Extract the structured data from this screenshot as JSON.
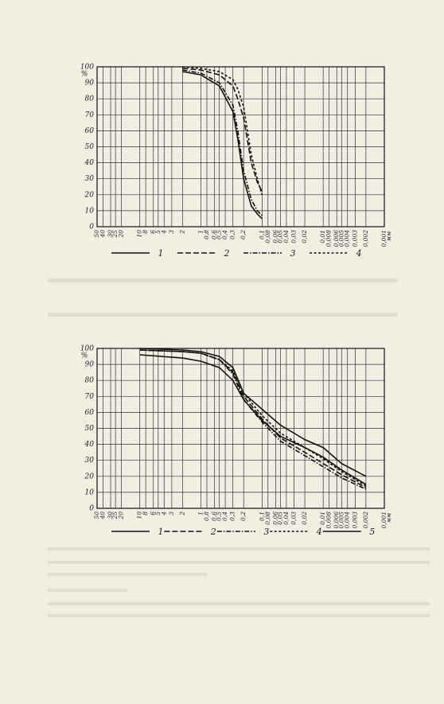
{
  "chart_data": [
    {
      "type": "line",
      "x_unit": "мм",
      "y_unit": "%",
      "xlim": [
        50,
        0.001
      ],
      "ylim": [
        0,
        100
      ],
      "log_x": true,
      "grid": true,
      "xticks": [
        50,
        40,
        30,
        25,
        20,
        10,
        8,
        6,
        5,
        4,
        3,
        2,
        1,
        {
          "value": 0.8,
          "label": "0,8"
        },
        {
          "value": 0.6,
          "label": "0,6"
        },
        {
          "value": 0.5,
          "label": "0,5"
        },
        {
          "value": 0.4,
          "label": "0,4"
        },
        {
          "value": 0.3,
          "label": "0,3"
        },
        {
          "value": 0.2,
          "label": "0,2"
        },
        {
          "value": 0.1,
          "label": "0,1"
        },
        {
          "value": 0.08,
          "label": "0,08"
        },
        {
          "value": 0.06,
          "label": "0,06"
        },
        {
          "value": 0.05,
          "label": "0,05"
        },
        {
          "value": 0.04,
          "label": "0,04"
        },
        {
          "value": 0.03,
          "label": "0,03"
        },
        {
          "value": 0.02,
          "label": "0,02"
        },
        {
          "value": 0.01,
          "label": "0,01"
        },
        {
          "value": 0.008,
          "label": "0,008"
        },
        {
          "value": 0.006,
          "label": "0,006"
        },
        {
          "value": 0.005,
          "label": "0,005"
        },
        {
          "value": 0.004,
          "label": "0,004"
        },
        {
          "value": 0.003,
          "label": "0,003"
        },
        {
          "value": 0.002,
          "label": "0,002"
        },
        {
          "value": 0.001,
          "label": "0,001"
        }
      ],
      "yticks": [
        0,
        10,
        20,
        30,
        40,
        50,
        60,
        70,
        80,
        90,
        100
      ],
      "x": [
        2,
        1,
        0.5,
        0.3,
        0.25,
        0.2,
        0.15,
        0.12,
        0.1
      ],
      "series": [
        {
          "name": "1",
          "color": "#111",
          "dash": "solid",
          "values": [
            97,
            95,
            88,
            72,
            55,
            30,
            13,
            8,
            5
          ]
        },
        {
          "name": "2",
          "color": "#111",
          "dash": "dashed",
          "values": [
            99,
            98,
            95,
            88,
            80,
            68,
            40,
            28,
            22
          ]
        },
        {
          "name": "3",
          "color": "#111",
          "dash": "dashdot",
          "values": [
            98,
            96,
            90,
            76,
            60,
            35,
            17,
            10,
            7
          ]
        },
        {
          "name": "4",
          "color": "#111",
          "dash": "dotted",
          "values": [
            100,
            99,
            97,
            92,
            86,
            75,
            45,
            30,
            20
          ]
        }
      ]
    },
    {
      "type": "line",
      "x_unit": "мм",
      "y_unit": "%",
      "xlim": [
        50,
        0.001
      ],
      "ylim": [
        0,
        100
      ],
      "log_x": true,
      "grid": true,
      "xticks": [
        50,
        40,
        30,
        25,
        20,
        10,
        8,
        6,
        5,
        4,
        3,
        2,
        1,
        {
          "value": 0.8,
          "label": "0,8"
        },
        {
          "value": 0.6,
          "label": "0,6"
        },
        {
          "value": 0.5,
          "label": "0,5"
        },
        {
          "value": 0.4,
          "label": "0,4"
        },
        {
          "value": 0.3,
          "label": "0,3"
        },
        {
          "value": 0.2,
          "label": "0,2"
        },
        {
          "value": 0.1,
          "label": "0,1"
        },
        {
          "value": 0.08,
          "label": "0,08"
        },
        {
          "value": 0.06,
          "label": "0,06"
        },
        {
          "value": 0.05,
          "label": "0,05"
        },
        {
          "value": 0.04,
          "label": "0,04"
        },
        {
          "value": 0.03,
          "label": "0,03"
        },
        {
          "value": 0.02,
          "label": "0,02"
        },
        {
          "value": 0.01,
          "label": "0,01"
        },
        {
          "value": 0.008,
          "label": "0,008"
        },
        {
          "value": 0.006,
          "label": "0,006"
        },
        {
          "value": 0.005,
          "label": "0,005"
        },
        {
          "value": 0.004,
          "label": "0,004"
        },
        {
          "value": 0.003,
          "label": "0,003"
        },
        {
          "value": 0.002,
          "label": "0,002"
        },
        {
          "value": 0.001,
          "label": "0,001"
        }
      ],
      "yticks": [
        0,
        10,
        20,
        30,
        40,
        50,
        60,
        70,
        80,
        90,
        100
      ],
      "x": [
        10,
        2,
        1,
        0.5,
        0.3,
        0.2,
        0.1,
        0.05,
        0.02,
        0.01,
        0.005,
        0.002
      ],
      "series": [
        {
          "name": "1",
          "color": "#111",
          "dash": "solid",
          "values": [
            96,
            94,
            92,
            88,
            80,
            68,
            55,
            45,
            38,
            32,
            24,
            15
          ]
        },
        {
          "name": "2",
          "color": "#111",
          "dash": "dashed",
          "values": [
            99,
            98,
            97,
            93,
            85,
            70,
            56,
            44,
            35,
            28,
            21,
            13
          ]
        },
        {
          "name": "3",
          "color": "#111",
          "dash": "dashdot",
          "values": [
            99,
            98,
            97,
            93,
            84,
            68,
            54,
            42,
            33,
            26,
            19,
            12
          ]
        },
        {
          "name": "4",
          "color": "#111",
          "dash": "dotted",
          "values": [
            99,
            98,
            97,
            93,
            86,
            72,
            58,
            47,
            38,
            31,
            23,
            14
          ]
        },
        {
          "name": "5",
          "color": "#111",
          "dash": "solid",
          "values": [
            100,
            99,
            98,
            95,
            88,
            72,
            62,
            52,
            43,
            38,
            28,
            20
          ]
        }
      ]
    }
  ]
}
